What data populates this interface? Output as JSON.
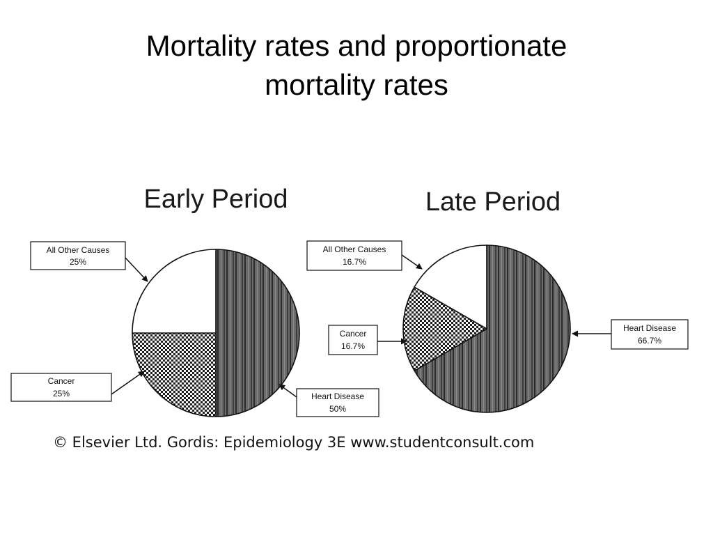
{
  "slide": {
    "title_line1": "Mortality rates and proportionate",
    "title_line2": "mortality rates"
  },
  "figure": {
    "credit": "© Elsevier Ltd. Gordis: Epidemiology 3E www.studentconsult.com"
  },
  "chart_data": [
    {
      "type": "pie",
      "title": "Early Period",
      "slices": [
        {
          "label": "Heart Disease",
          "value": 50,
          "value_text": "50%",
          "pattern": "vertical-stripes"
        },
        {
          "label": "Cancer",
          "value": 25,
          "value_text": "25%",
          "pattern": "checkered"
        },
        {
          "label": "All Other Causes",
          "value": 25,
          "value_text": "25%",
          "pattern": "white"
        }
      ]
    },
    {
      "type": "pie",
      "title": "Late Period",
      "slices": [
        {
          "label": "Heart Disease",
          "value": 66.7,
          "value_text": "66.7%",
          "pattern": "vertical-stripes"
        },
        {
          "label": "Cancer",
          "value": 16.7,
          "value_text": "16.7%",
          "pattern": "checkered"
        },
        {
          "label": "All Other Causes",
          "value": 16.7,
          "value_text": "16.7%",
          "pattern": "white"
        }
      ]
    }
  ]
}
